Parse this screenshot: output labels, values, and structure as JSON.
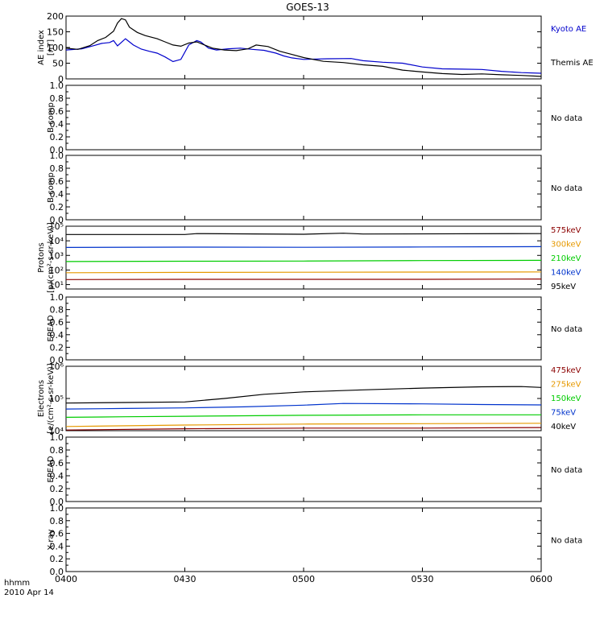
{
  "chart_data": {
    "type": "line",
    "title": "GOES-13",
    "x_axis": {
      "range": [
        "0400",
        "0600"
      ],
      "tick_labels": [
        "0400",
        "0430",
        "0500",
        "0530",
        "0600"
      ],
      "corner_label_1": "hhmm",
      "corner_label_2": "2010 Apr 14"
    },
    "panels": [
      {
        "id": "ae",
        "ylabel_lines": [
          "AE index",
          "[nT]"
        ],
        "scale": "linear",
        "ylim": [
          0,
          200
        ],
        "tick_labels": [
          "0",
          "50",
          "100",
          "150",
          "200"
        ],
        "legend_entries": [
          {
            "label": "Kyoto AE",
            "color": "#0000cc"
          },
          {
            "label": "Themis AE",
            "color": "#000000"
          }
        ],
        "series": [
          {
            "name": "Kyoto AE",
            "color": "#0000cc",
            "x": [
              "0400",
              "0404",
              "0407",
              "0409",
              "0411",
              "0412",
              "0413",
              "0415",
              "0416",
              "0417",
              "0419",
              "0421",
              "0423",
              "0425",
              "0427",
              "0429",
              "0431",
              "0433",
              "0434",
              "0436",
              "0438",
              "0441",
              "0444",
              "0447",
              "0450",
              "0453",
              "0455",
              "0457",
              "0500",
              "0506",
              "0512",
              "0515",
              "0520",
              "0525",
              "0530",
              "0535",
              "0540",
              "0545",
              "0550",
              "0555",
              "0600"
            ],
            "y": [
              92,
              96,
              106,
              113,
              116,
              122,
              105,
              128,
              118,
              108,
              95,
              88,
              82,
              70,
              55,
              62,
              108,
              122,
              118,
              98,
              92,
              96,
              98,
              94,
              91,
              82,
              73,
              67,
              62,
              64,
              65,
              58,
              53,
              50,
              38,
              32,
              31,
              30,
              24,
              20,
              18
            ]
          },
          {
            "name": "Themis AE",
            "color": "#000000",
            "x": [
              "0400",
              "0403",
              "0406",
              "0408",
              "0410",
              "0412",
              "0413",
              "0414",
              "0415",
              "0416",
              "0418",
              "0420",
              "0423",
              "0425",
              "0427",
              "0429",
              "0431",
              "0433",
              "0435",
              "0437",
              "0440",
              "0443",
              "0446",
              "0448",
              "0451",
              "0454",
              "0457",
              "0500",
              "0505",
              "0510",
              "0515",
              "0520",
              "0525",
              "0530",
              "0535",
              "0540",
              "0545",
              "0550",
              "0555",
              "0600"
            ],
            "y": [
              98,
              94,
              106,
              122,
              132,
              152,
              178,
              192,
              188,
              165,
              148,
              138,
              128,
              118,
              108,
              104,
              114,
              118,
              108,
              98,
              92,
              90,
              96,
              108,
              103,
              88,
              78,
              68,
              56,
              52,
              45,
              40,
              28,
              22,
              17,
              14,
              16,
              13,
              11,
              8
            ]
          }
        ]
      },
      {
        "id": "bcomp1",
        "ylabel_lines": [
          "B comp"
        ],
        "scale": "linear",
        "ylim": [
          0,
          1
        ],
        "tick_labels": [
          "0.0",
          "0.2",
          "0.4",
          "0.6",
          "0.8",
          "1.0"
        ],
        "status": "No data"
      },
      {
        "id": "bcomp2",
        "ylabel_lines": [
          "B comp"
        ],
        "scale": "linear",
        "ylim": [
          0,
          1
        ],
        "tick_labels": [
          "0.0",
          "0.2",
          "0.4",
          "0.6",
          "0.8",
          "1.0"
        ],
        "status": "No data"
      },
      {
        "id": "protons",
        "ylabel_lines": [
          "Protons",
          "[p/(cm²-s-sr-keV)]"
        ],
        "scale": "log",
        "ylim": [
          5,
          100000
        ],
        "tick_labels": [
          "10¹",
          "10²",
          "10³",
          "10⁴",
          "10⁵"
        ],
        "legend_entries": [
          {
            "label": "575keV",
            "color": "#8b0000"
          },
          {
            "label": "300keV",
            "color": "#e69900"
          },
          {
            "label": "210keV",
            "color": "#00cc00"
          },
          {
            "label": "140keV",
            "color": "#0033cc"
          },
          {
            "label": "95keV",
            "color": "#000000"
          }
        ],
        "series": [
          {
            "name": "95keV",
            "color": "#000000",
            "x": [
              "0400",
              "0430",
              "0433",
              "0500",
              "0510",
              "0515",
              "0600"
            ],
            "y": [
              27000,
              27000,
              31000,
              28000,
              33000,
              29000,
              31000
            ]
          },
          {
            "name": "140keV",
            "color": "#0033cc",
            "x": [
              "0400",
              "0430",
              "0500",
              "0530",
              "0600"
            ],
            "y": [
              3500,
              3700,
              3600,
              3800,
              4000
            ]
          },
          {
            "name": "210keV",
            "color": "#00cc00",
            "x": [
              "0400",
              "0430",
              "0500",
              "0530",
              "0600"
            ],
            "y": [
              380,
              400,
              410,
              440,
              460
            ]
          },
          {
            "name": "300keV",
            "color": "#e69900",
            "x": [
              "0400",
              "0430",
              "0500",
              "0530",
              "0600"
            ],
            "y": [
              65,
              68,
              70,
              72,
              74
            ]
          },
          {
            "name": "575keV",
            "color": "#8b0000",
            "x": [
              "0400",
              "0430",
              "0500",
              "0530",
              "0600"
            ],
            "y": [
              22,
              23,
              23,
              23,
              24
            ]
          }
        ]
      },
      {
        "id": "epead1",
        "ylabel_lines": [
          "EPEAD"
        ],
        "scale": "linear",
        "ylim": [
          0,
          1
        ],
        "tick_labels": [
          "0.0",
          "0.2",
          "0.4",
          "0.6",
          "0.8",
          "1.0"
        ],
        "status": "No data"
      },
      {
        "id": "electrons",
        "ylabel_lines": [
          "Electrons",
          "[e/(cm²-s-sr-keV)]"
        ],
        "scale": "log",
        "ylim": [
          10000,
          1000000
        ],
        "tick_labels": [
          "10⁴",
          "10⁵",
          "10⁶"
        ],
        "legend_entries": [
          {
            "label": "475keV",
            "color": "#8b0000"
          },
          {
            "label": "275keV",
            "color": "#e69900"
          },
          {
            "label": "150keV",
            "color": "#00cc00"
          },
          {
            "label": "75keV",
            "color": "#0033cc"
          },
          {
            "label": "40keV",
            "color": "#000000"
          }
        ],
        "series": [
          {
            "name": "40keV",
            "color": "#000000",
            "x": [
              "0400",
              "0415",
              "0430",
              "0440",
              "0450",
              "0500",
              "0515",
              "0530",
              "0545",
              "0555",
              "0600"
            ],
            "y": [
              72000,
              75000,
              78000,
              100000,
              135000,
              160000,
              185000,
              210000,
              230000,
              235000,
              220000
            ]
          },
          {
            "name": "75keV",
            "color": "#0033cc",
            "x": [
              "0400",
              "0415",
              "0430",
              "0445",
              "0500",
              "0510",
              "0530",
              "0545",
              "0600"
            ],
            "y": [
              47000,
              49000,
              51000,
              55000,
              62000,
              70000,
              68000,
              65000,
              63000
            ]
          },
          {
            "name": "150keV",
            "color": "#00cc00",
            "x": [
              "0400",
              "0415",
              "0430",
              "0445",
              "0500",
              "0530",
              "0600"
            ],
            "y": [
              26000,
              27000,
              28000,
              29000,
              30000,
              31000,
              31000
            ]
          },
          {
            "name": "275keV",
            "color": "#e69900",
            "x": [
              "0400",
              "0430",
              "0500",
              "0530",
              "0600"
            ],
            "y": [
              13500,
              15000,
              16000,
              16500,
              17000
            ]
          },
          {
            "name": "475keV",
            "color": "#8b0000",
            "x": [
              "0400",
              "0430",
              "0500",
              "0530",
              "0600"
            ],
            "y": [
              10500,
              11500,
              12000,
              12000,
              12500
            ]
          }
        ]
      },
      {
        "id": "epead2",
        "ylabel_lines": [
          "EPEAD"
        ],
        "scale": "linear",
        "ylim": [
          0,
          1
        ],
        "tick_labels": [
          "0.0",
          "0.2",
          "0.4",
          "0.6",
          "0.8",
          "1.0"
        ],
        "status": "No data"
      },
      {
        "id": "xray",
        "ylabel_lines": [
          "X-ray"
        ],
        "scale": "linear",
        "ylim": [
          0,
          1
        ],
        "tick_labels": [
          "0.0",
          "0.2",
          "0.4",
          "0.6",
          "0.8",
          "1.0"
        ],
        "status": "No data"
      }
    ]
  }
}
